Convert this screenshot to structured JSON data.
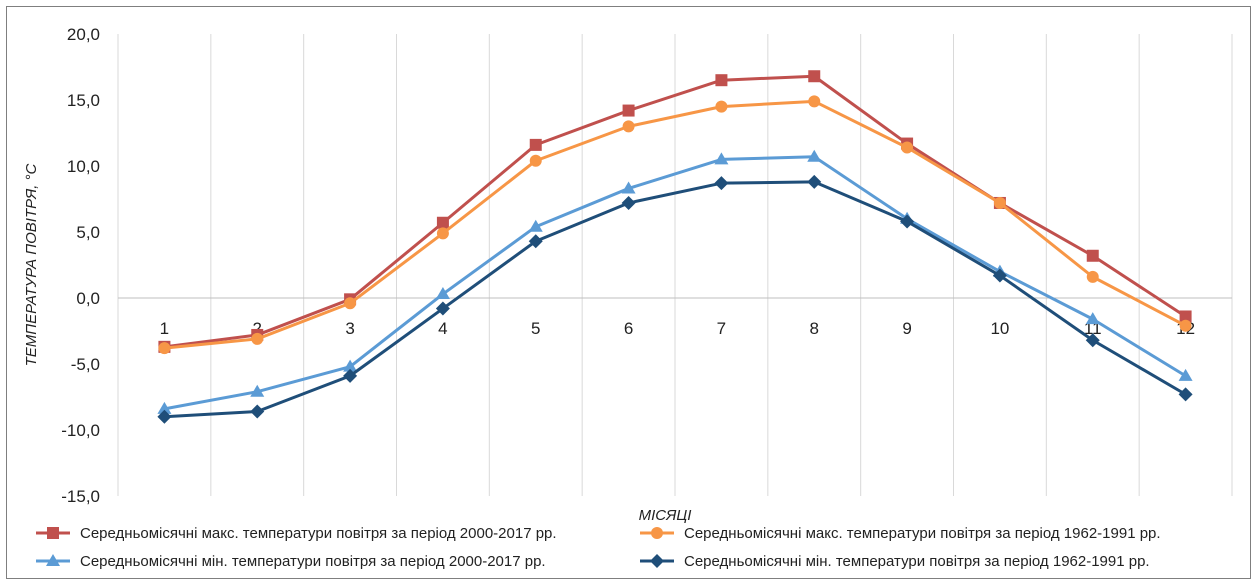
{
  "chart_data": {
    "type": "line",
    "xlabel": "МІСЯЦІ",
    "ylabel": "ТЕМПЕРАТУРА ПОВІТРЯ, °С",
    "ylim": [
      -15,
      20
    ],
    "yticks": [
      "20,0",
      "15,0",
      "10,0",
      "5,0",
      "0,0",
      "-5,0",
      "-10,0",
      "-15,0"
    ],
    "ytick_values": [
      20,
      15,
      10,
      5,
      0,
      -5,
      -10,
      -15
    ],
    "categories": [
      "1",
      "2",
      "3",
      "4",
      "5",
      "6",
      "7",
      "8",
      "9",
      "10",
      "11",
      "12"
    ],
    "grid": "vertical",
    "legend_position": "bottom",
    "series": [
      {
        "name": "Середньомісячні макс. температури повітря за період 2000-2017 рр.",
        "color": "#c0504d",
        "marker": "square",
        "values": [
          -3.7,
          -2.8,
          -0.1,
          5.7,
          11.6,
          14.2,
          16.5,
          16.8,
          11.7,
          7.2,
          3.2,
          -1.4
        ]
      },
      {
        "name": "Середньомісячні макс. температури повітря за період 1962-1991 рр.",
        "color": "#f79646",
        "marker": "circle",
        "values": [
          -3.8,
          -3.1,
          -0.4,
          4.9,
          10.4,
          13.0,
          14.5,
          14.9,
          11.4,
          7.2,
          1.6,
          -2.1
        ]
      },
      {
        "name": "Середньомісячні мін. температури повітря за період 2000-2017 рр.",
        "color": "#5b9bd5",
        "marker": "triangle",
        "values": [
          -8.4,
          -7.1,
          -5.2,
          0.3,
          5.4,
          8.3,
          10.5,
          10.7,
          6.0,
          2.0,
          -1.6,
          -5.9
        ]
      },
      {
        "name": "Середньомісячні мін. температури повітря за період 1962-1991 рр.",
        "color": "#1f4e79",
        "marker": "diamond",
        "values": [
          -9.0,
          -8.6,
          -5.9,
          -0.8,
          4.3,
          7.2,
          8.7,
          8.8,
          5.8,
          1.7,
          -3.2,
          -7.3
        ]
      }
    ]
  }
}
